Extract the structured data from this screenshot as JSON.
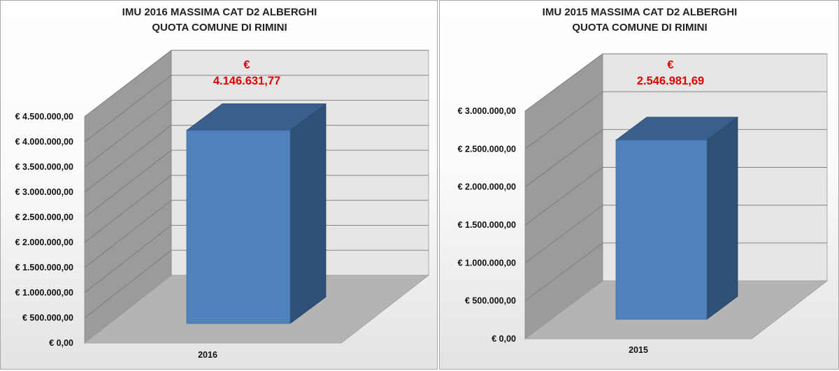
{
  "chart_data": [
    {
      "type": "bar",
      "title_lines": [
        "IMU 2016 MASSIMA CAT D2 ALBERGHI",
        "QUOTA COMUNE DI RIMINI"
      ],
      "categories": [
        "2016"
      ],
      "values": [
        4146631.77
      ],
      "data_labels": [
        "€",
        "4.146.631,77"
      ],
      "ylim": [
        0,
        4500000
      ],
      "yticks": [
        0,
        500000,
        1000000,
        1500000,
        2000000,
        2500000,
        3000000,
        3500000,
        4000000,
        4500000
      ],
      "ytick_labels": [
        "€ 0,00",
        "€ 500.000,00",
        "€ 1.000.000,00",
        "€ 1.500.000,00",
        "€ 2.000.000,00",
        "€ 2.500.000,00",
        "€ 3.000.000,00",
        "€ 3.500.000,00",
        "€ 4.000.000,00",
        "€ 4.500.000,00"
      ],
      "grid": true,
      "style": "3d-column",
      "bar_color": "#4f81bd"
    },
    {
      "type": "bar",
      "title_lines": [
        "IMU 2015 MASSIMA CAT D2 ALBERGHI",
        "QUOTA COMUNE DI RIMINI"
      ],
      "categories": [
        "2015"
      ],
      "values": [
        2546981.69
      ],
      "data_labels": [
        "€",
        "2.546.981,69"
      ],
      "ylim": [
        0,
        3000000
      ],
      "yticks": [
        0,
        500000,
        1000000,
        1500000,
        2000000,
        2500000,
        3000000
      ],
      "ytick_labels": [
        "€ 0,00",
        "€ 500.000,00",
        "€ 1.000.000,00",
        "€ 1.500.000,00",
        "€ 2.000.000,00",
        "€ 2.500.000,00",
        "€ 3.000.000,00"
      ],
      "grid": true,
      "style": "3d-column",
      "bar_color": "#4f81bd"
    }
  ]
}
